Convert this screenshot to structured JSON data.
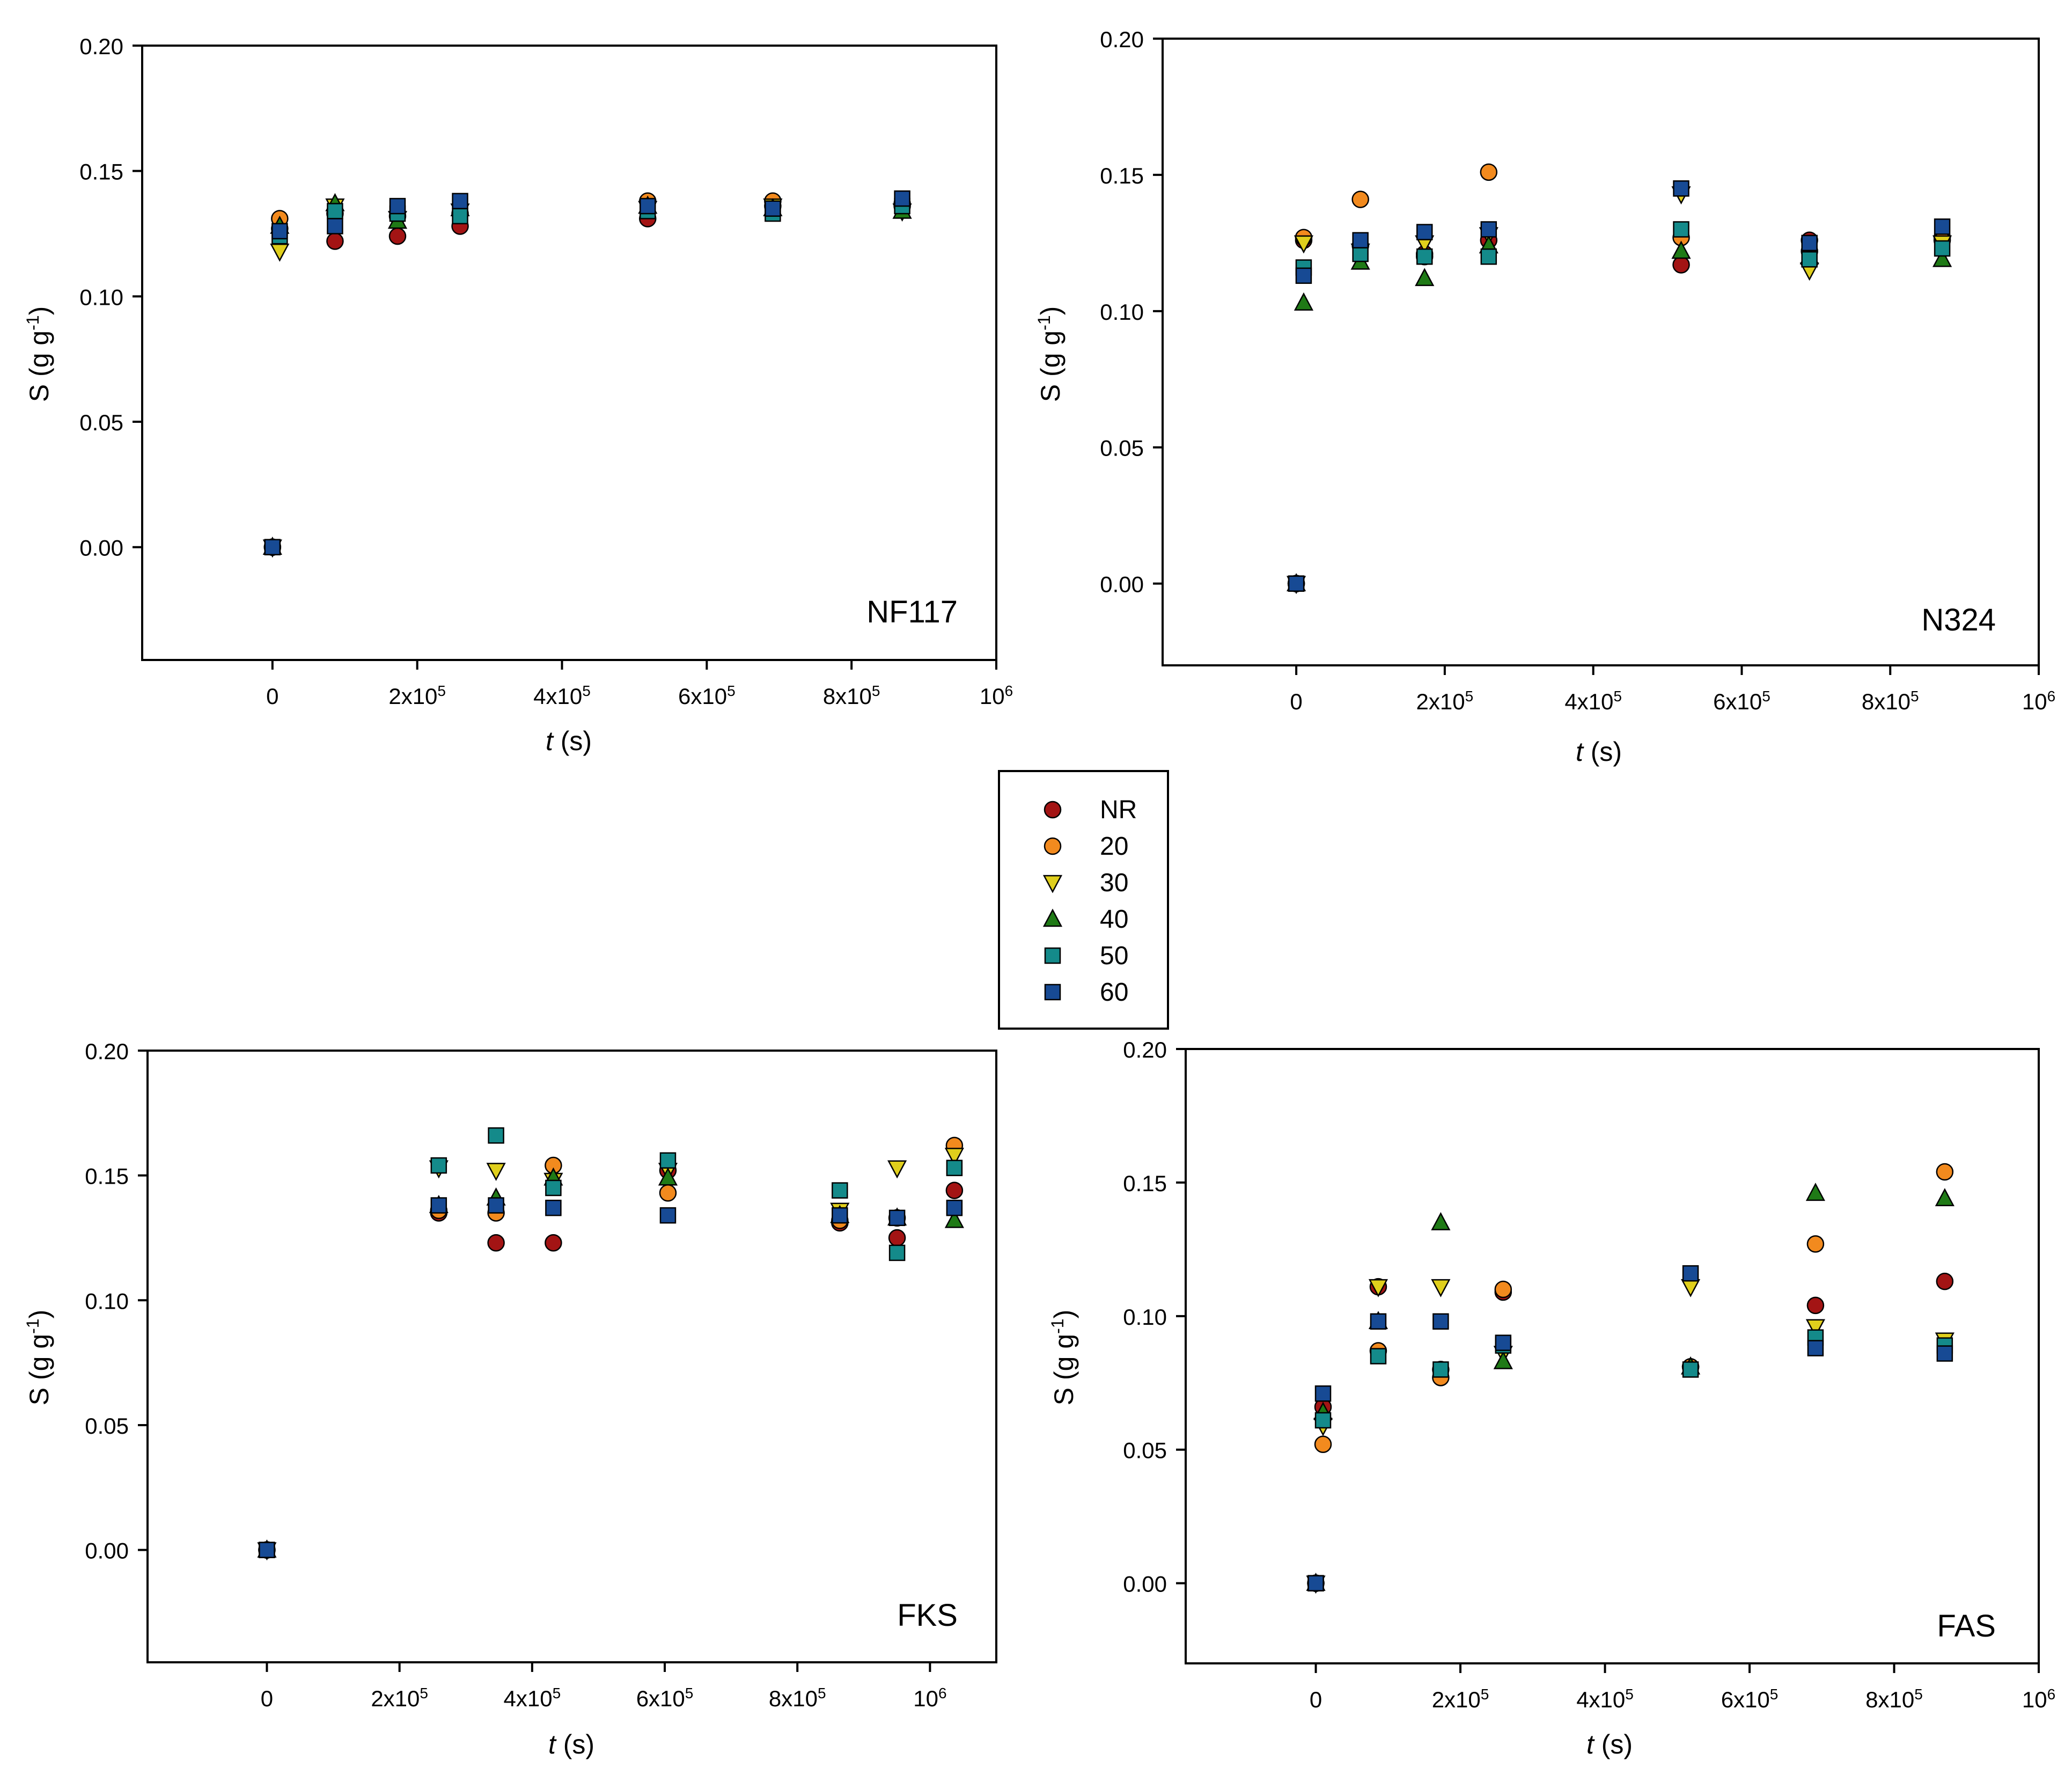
{
  "legend": {
    "entries": [
      "NR",
      "20",
      "30",
      "40",
      "50",
      "60"
    ]
  },
  "series_style": {
    "NR": {
      "marker": "circle",
      "color": "#a31414"
    },
    "20": {
      "marker": "circle",
      "color": "#f28a1e"
    },
    "30": {
      "marker": "triangle-down",
      "color": "#e0cf1c"
    },
    "40": {
      "marker": "triangle-up",
      "color": "#1f7a16"
    },
    "50": {
      "marker": "square",
      "color": "#148a8a"
    },
    "60": {
      "marker": "square",
      "color": "#174a94"
    }
  },
  "chart_data": [
    {
      "type": "scatter",
      "annotation": "NF117",
      "xlabel_italic": "t",
      "xlabel_rest": " (s)",
      "ylabel": "S (g g",
      "ylabel_sup": "-1",
      "ylabel_close": ")",
      "xlim": [
        -180000,
        1000000
      ],
      "ylim": [
        -0.045,
        0.2
      ],
      "x_ticks": [
        0,
        200000,
        400000,
        600000,
        800000,
        1000000
      ],
      "x_tick_labels": [
        {
          "base": "0",
          "exp": ""
        },
        {
          "base": "2x10",
          "exp": "5"
        },
        {
          "base": "4x10",
          "exp": "5"
        },
        {
          "base": "6x10",
          "exp": "5"
        },
        {
          "base": "8x10",
          "exp": "5"
        },
        {
          "base": "10",
          "exp": "6"
        }
      ],
      "y_ticks": [
        0.0,
        0.05,
        0.1,
        0.15,
        0.2
      ],
      "y_tick_labels": [
        "0.00",
        "0.05",
        "0.10",
        "0.15",
        "0.20"
      ],
      "series": [
        {
          "name": "NR",
          "x": [
            0,
            10000,
            86400,
            172800,
            259200,
            518400,
            691200,
            870000
          ],
          "y": [
            0.0,
            0.127,
            0.122,
            0.124,
            0.128,
            0.131,
            0.136,
            0.136
          ]
        },
        {
          "name": "20",
          "x": [
            0,
            10000,
            86400,
            172800,
            259200,
            518400,
            691200,
            870000
          ],
          "y": [
            0.0,
            0.131,
            0.133,
            0.132,
            0.133,
            0.138,
            0.138,
            0.137
          ]
        },
        {
          "name": "30",
          "x": [
            0,
            10000,
            86400,
            172800,
            259200,
            518400,
            691200,
            870000
          ],
          "y": [
            0.0,
            0.118,
            0.136,
            0.131,
            0.134,
            0.135,
            0.136,
            0.134
          ]
        },
        {
          "name": "40",
          "x": [
            0,
            10000,
            86400,
            172800,
            259200,
            518400,
            691200,
            870000
          ],
          "y": [
            0.0,
            0.128,
            0.137,
            0.13,
            0.135,
            0.136,
            0.135,
            0.134
          ]
        },
        {
          "name": "50",
          "x": [
            0,
            10000,
            86400,
            172800,
            259200,
            518400,
            691200,
            870000
          ],
          "y": [
            0.0,
            0.124,
            0.134,
            0.133,
            0.132,
            0.134,
            0.133,
            0.136
          ]
        },
        {
          "name": "60",
          "x": [
            0,
            10000,
            86400,
            172800,
            259200,
            518400,
            691200,
            870000
          ],
          "y": [
            0.0,
            0.126,
            0.128,
            0.136,
            0.138,
            0.136,
            0.135,
            0.139
          ]
        }
      ]
    },
    {
      "type": "scatter",
      "annotation": "N324",
      "xlabel_italic": "t",
      "xlabel_rest": " (s)",
      "ylabel": "S (g g",
      "ylabel_sup": "-1",
      "ylabel_close": ")",
      "xlim": [
        -180000,
        1000000
      ],
      "ylim": [
        -0.03,
        0.2
      ],
      "x_ticks": [
        0,
        200000,
        400000,
        600000,
        800000,
        1000000
      ],
      "x_tick_labels": [
        {
          "base": "0",
          "exp": ""
        },
        {
          "base": "2x10",
          "exp": "5"
        },
        {
          "base": "4x10",
          "exp": "5"
        },
        {
          "base": "6x10",
          "exp": "5"
        },
        {
          "base": "8x10",
          "exp": "5"
        },
        {
          "base": "10",
          "exp": "6"
        }
      ],
      "y_ticks": [
        0.0,
        0.05,
        0.1,
        0.15,
        0.2
      ],
      "y_tick_labels": [
        "0.00",
        "0.05",
        "0.10",
        "0.15",
        "0.20"
      ],
      "series": [
        {
          "name": "NR",
          "x": [
            0,
            10000,
            86400,
            172800,
            259200,
            518400,
            691200,
            870000
          ],
          "y": [
            0.0,
            0.126,
            0.124,
            0.121,
            0.126,
            0.117,
            0.126,
            0.127
          ]
        },
        {
          "name": "20",
          "x": [
            0,
            10000,
            86400,
            172800,
            259200,
            518400,
            691200,
            870000
          ],
          "y": [
            0.0,
            0.127,
            0.141,
            0.12,
            0.151,
            0.127,
            0.122,
            0.126
          ]
        },
        {
          "name": "30",
          "x": [
            0,
            10000,
            86400,
            172800,
            259200,
            518400,
            691200,
            870000
          ],
          "y": [
            0.0,
            0.125,
            0.122,
            0.125,
            0.128,
            0.143,
            0.115,
            0.125
          ]
        },
        {
          "name": "40",
          "x": [
            0,
            10000,
            86400,
            172800,
            259200,
            518400,
            691200,
            870000
          ],
          "y": [
            0.0,
            0.103,
            0.118,
            0.112,
            0.124,
            0.122,
            0.12,
            0.119
          ]
        },
        {
          "name": "50",
          "x": [
            0,
            10000,
            86400,
            172800,
            259200,
            518400,
            691200,
            870000
          ],
          "y": [
            0.0,
            0.116,
            0.121,
            0.12,
            0.12,
            0.13,
            0.119,
            0.123
          ]
        },
        {
          "name": "60",
          "x": [
            0,
            10000,
            86400,
            172800,
            259200,
            518400,
            691200,
            870000
          ],
          "y": [
            0.0,
            0.113,
            0.126,
            0.129,
            0.13,
            0.145,
            0.125,
            0.131
          ]
        }
      ]
    },
    {
      "type": "scatter",
      "annotation": "FKS",
      "xlabel_italic": "t",
      "xlabel_rest": " (s)",
      "ylabel": "S (g g",
      "ylabel_sup": "-1",
      "ylabel_close": ")",
      "xlim": [
        -180000,
        1100000
      ],
      "ylim": [
        -0.045,
        0.2
      ],
      "x_ticks": [
        0,
        200000,
        400000,
        600000,
        800000,
        1000000
      ],
      "x_tick_labels": [
        {
          "base": "0",
          "exp": ""
        },
        {
          "base": "2x10",
          "exp": "5"
        },
        {
          "base": "4x10",
          "exp": "5"
        },
        {
          "base": "6x10",
          "exp": "5"
        },
        {
          "base": "8x10",
          "exp": "5"
        },
        {
          "base": "10",
          "exp": "6"
        }
      ],
      "y_ticks": [
        0.0,
        0.05,
        0.1,
        0.15,
        0.2
      ],
      "y_tick_labels": [
        "0.00",
        "0.05",
        "0.10",
        "0.15",
        "0.20"
      ],
      "series": [
        {
          "name": "NR",
          "x": [
            0,
            259200,
            345600,
            432000,
            604800,
            864000,
            950400,
            1036800
          ],
          "y": [
            0.0,
            0.135,
            0.123,
            0.123,
            0.152,
            0.131,
            0.125,
            0.144
          ]
        },
        {
          "name": "20",
          "x": [
            0,
            259200,
            345600,
            432000,
            604800,
            864000,
            950400,
            1036800
          ],
          "y": [
            0.0,
            0.136,
            0.135,
            0.154,
            0.143,
            0.132,
            0.133,
            0.162
          ]
        },
        {
          "name": "30",
          "x": [
            0,
            259200,
            345600,
            432000,
            604800,
            864000,
            950400,
            1036800
          ],
          "y": [
            0.0,
            0.153,
            0.152,
            0.148,
            0.152,
            0.136,
            0.153,
            0.158
          ]
        },
        {
          "name": "40",
          "x": [
            0,
            259200,
            345600,
            432000,
            604800,
            864000,
            950400,
            1036800
          ],
          "y": [
            0.0,
            0.138,
            0.141,
            0.149,
            0.149,
            0.134,
            0.133,
            0.132
          ]
        },
        {
          "name": "50",
          "x": [
            0,
            259200,
            345600,
            432000,
            604800,
            864000,
            950400,
            1036800
          ],
          "y": [
            0.0,
            0.154,
            0.166,
            0.145,
            0.156,
            0.144,
            0.119,
            0.153
          ]
        },
        {
          "name": "60",
          "x": [
            0,
            259200,
            345600,
            432000,
            604800,
            864000,
            950400,
            1036800
          ],
          "y": [
            0.0,
            0.138,
            0.138,
            0.137,
            0.134,
            0.134,
            0.133,
            0.137
          ]
        }
      ]
    },
    {
      "type": "scatter",
      "annotation": "FAS",
      "xlabel_italic": "t",
      "xlabel_rest": " (s)",
      "ylabel": "S (g g",
      "ylabel_sup": "-1",
      "ylabel_close": ")",
      "xlim": [
        -180000,
        1000000
      ],
      "ylim": [
        -0.03,
        0.2
      ],
      "x_ticks": [
        0,
        200000,
        400000,
        600000,
        800000,
        1000000
      ],
      "x_tick_labels": [
        {
          "base": "0",
          "exp": ""
        },
        {
          "base": "2x10",
          "exp": "5"
        },
        {
          "base": "4x10",
          "exp": "5"
        },
        {
          "base": "6x10",
          "exp": "5"
        },
        {
          "base": "8x10",
          "exp": "5"
        },
        {
          "base": "10",
          "exp": "6"
        }
      ],
      "y_ticks": [
        0.0,
        0.05,
        0.1,
        0.15,
        0.2
      ],
      "y_tick_labels": [
        "0.00",
        "0.05",
        "0.10",
        "0.15",
        "0.20"
      ],
      "series": [
        {
          "name": "NR",
          "x": [
            0,
            10000,
            86400,
            172800,
            259200,
            518400,
            691200,
            870000
          ],
          "y": [
            0.0,
            0.066,
            0.111,
            0.08,
            0.109,
            0.081,
            0.104,
            0.113
          ]
        },
        {
          "name": "20",
          "x": [
            0,
            10000,
            86400,
            172800,
            259200,
            518400,
            691200,
            870000
          ],
          "y": [
            0.0,
            0.052,
            0.087,
            0.077,
            0.11,
            0.081,
            0.127,
            0.154
          ]
        },
        {
          "name": "30",
          "x": [
            0,
            10000,
            86400,
            172800,
            259200,
            518400,
            691200,
            870000
          ],
          "y": [
            0.0,
            0.059,
            0.111,
            0.111,
            0.086,
            0.111,
            0.096,
            0.091
          ]
        },
        {
          "name": "40",
          "x": [
            0,
            10000,
            86400,
            172800,
            259200,
            518400,
            691200,
            870000
          ],
          "y": [
            0.0,
            0.064,
            0.098,
            0.135,
            0.083,
            0.081,
            0.146,
            0.144
          ]
        },
        {
          "name": "50",
          "x": [
            0,
            10000,
            86400,
            172800,
            259200,
            518400,
            691200,
            870000
          ],
          "y": [
            0.0,
            0.061,
            0.085,
            0.08,
            0.089,
            0.08,
            0.092,
            0.089
          ]
        },
        {
          "name": "60",
          "x": [
            0,
            10000,
            86400,
            172800,
            259200,
            518400,
            691200,
            870000
          ],
          "y": [
            0.0,
            0.071,
            0.098,
            0.098,
            0.09,
            0.116,
            0.088,
            0.086
          ]
        }
      ]
    }
  ]
}
